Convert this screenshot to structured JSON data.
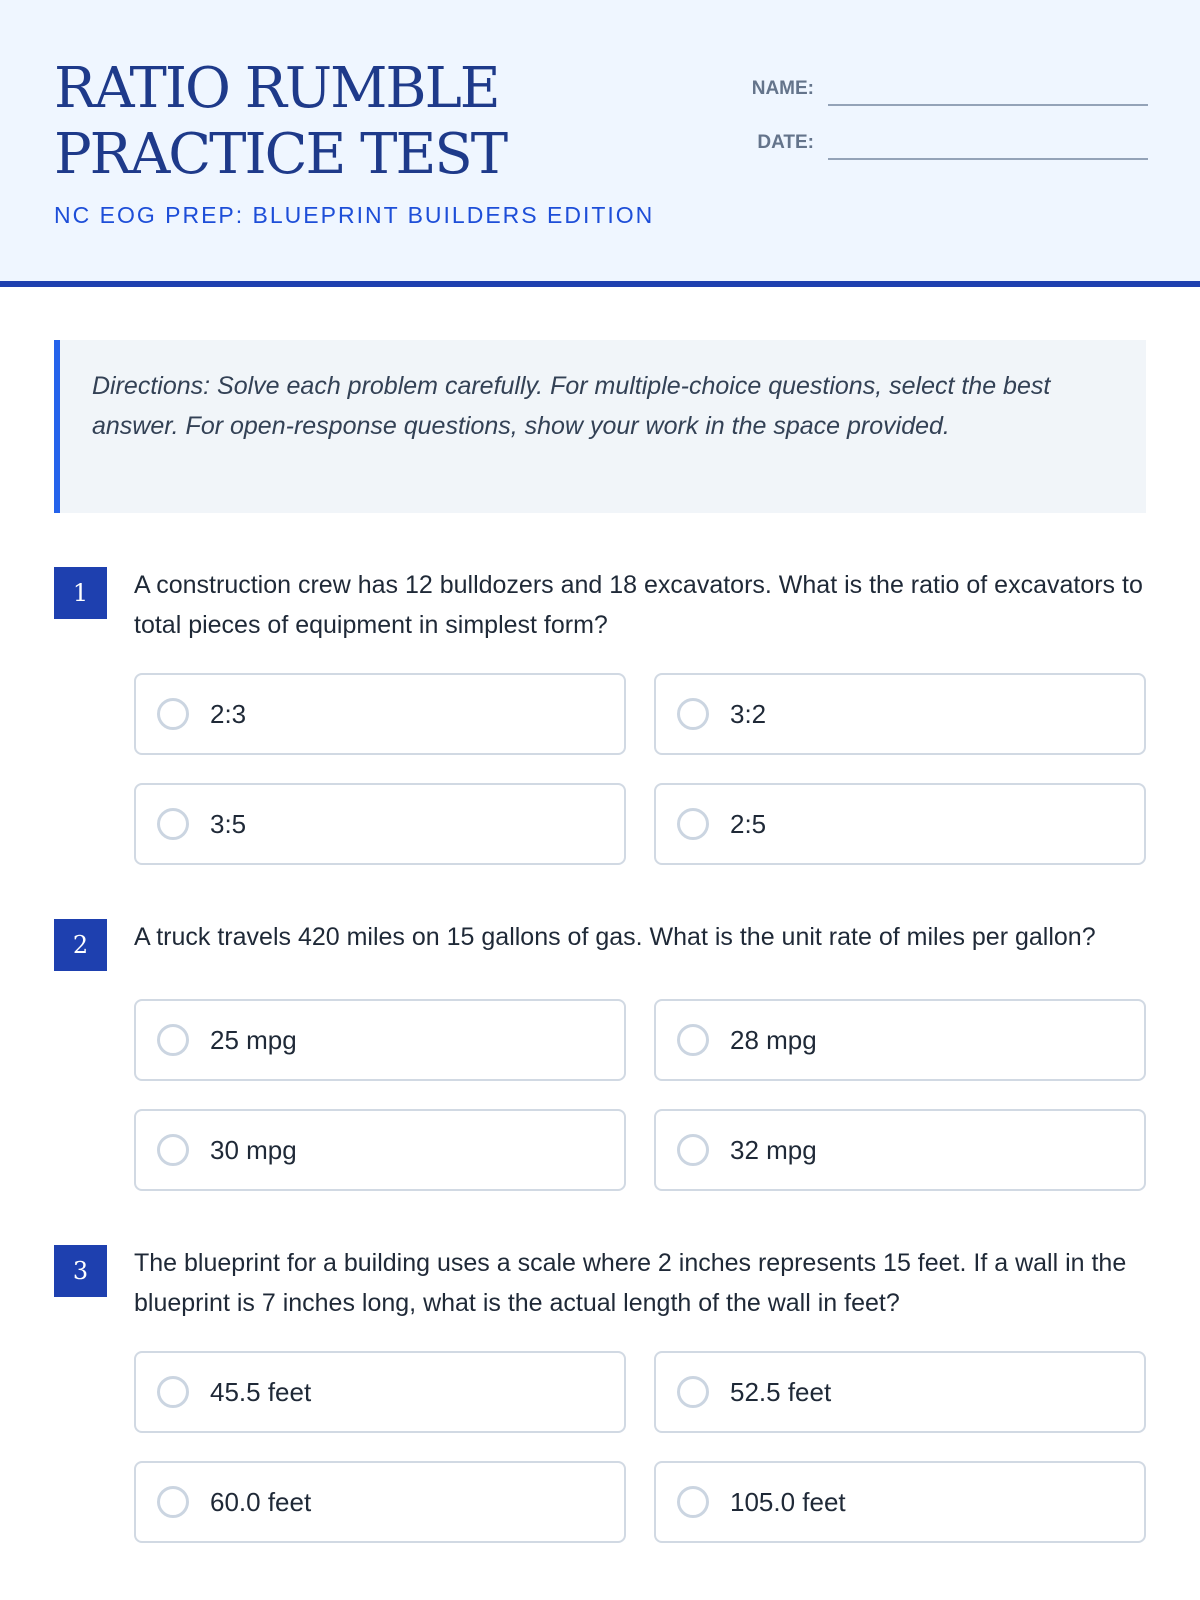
{
  "header": {
    "title_line1": "RATIO RUMBLE",
    "title_line2": "PRACTICE TEST",
    "subtitle": "NC EOG PREP: BLUEPRINT BUILDERS EDITION",
    "name_label": "NAME:",
    "date_label": "DATE:"
  },
  "directions": "Directions: Solve each problem carefully. For multiple-choice questions, select the best answer. For open-response questions, show your work in the space provided.",
  "questions": [
    {
      "number": "1",
      "text": "A construction crew has 12 bulldozers and 18 excavators. What is the ratio of excavators to total pieces of equipment in simplest form?",
      "options": [
        "2:3",
        "3:2",
        "3:5",
        "2:5"
      ]
    },
    {
      "number": "2",
      "text": "A truck travels 420 miles on 15 gallons of gas. What is the unit rate of miles per gallon?",
      "options": [
        "25 mpg",
        "28 mpg",
        "30 mpg",
        "32 mpg"
      ]
    },
    {
      "number": "3",
      "text": "The blueprint for a building uses a scale where 2 inches represents 15 feet. If a wall in the blueprint is 7 inches long, what is the actual length of the wall in feet?",
      "options": [
        "45.5 feet",
        "52.5 feet",
        "60.0 feet",
        "105.0 feet"
      ]
    }
  ]
}
